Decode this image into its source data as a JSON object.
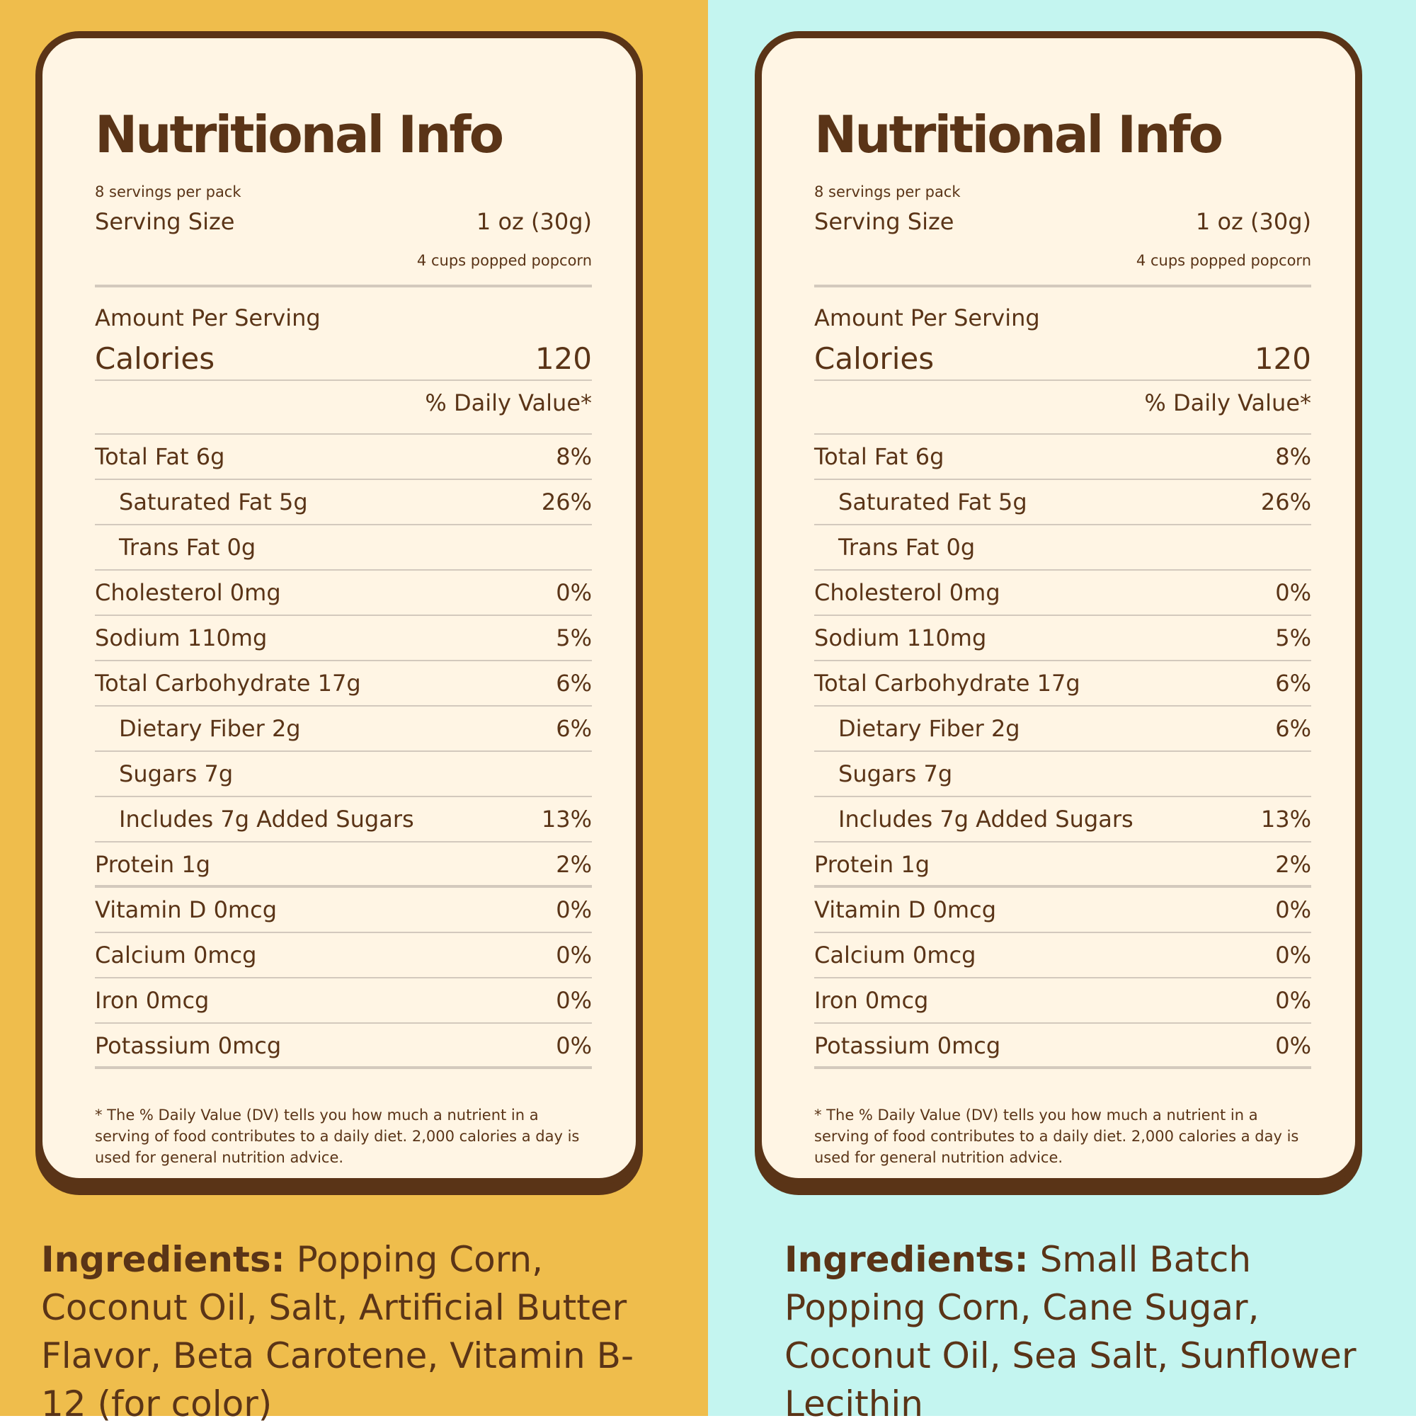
{
  "colors": {
    "left_bg": "#efbd4c",
    "right_bg": "#c4f5f0",
    "card_bg": "#fff5e4",
    "text": "#5a3417",
    "rule": "#d3c9bd"
  },
  "panels": [
    {
      "title": "Nutritional Info",
      "servings_per_pack": "8 servings per pack",
      "serving_size_label": "Serving Size",
      "serving_size_value": "1 oz (30g)",
      "serving_size_note": "4 cups popped popcorn",
      "amount_per_serving": "Amount Per Serving",
      "calories_label": "Calories",
      "calories_value": "120",
      "daily_value_header": "% Daily Value*",
      "nutrients": [
        {
          "label": "Total Fat 6g",
          "dv": "8%"
        },
        {
          "label": "Saturated Fat 5g",
          "dv": "26%"
        },
        {
          "label": "Trans Fat 0g",
          "dv": ""
        },
        {
          "label": "Cholesterol 0mg",
          "dv": "0%"
        },
        {
          "label": "Sodium 110mg",
          "dv": "5%"
        },
        {
          "label": "Total Carbohydrate 17g",
          "dv": "6%"
        },
        {
          "label": "Dietary Fiber 2g",
          "dv": "6%"
        },
        {
          "label": "Sugars 7g",
          "dv": ""
        },
        {
          "label": "Includes 7g Added Sugars",
          "dv": "13%"
        },
        {
          "label": "Protein 1g",
          "dv": "2%"
        },
        {
          "label": "Vitamin D 0mcg",
          "dv": "0%"
        },
        {
          "label": "Calcium 0mcg",
          "dv": "0%"
        },
        {
          "label": "Iron 0mcg",
          "dv": "0%"
        },
        {
          "label": "Potassium 0mcg",
          "dv": "0%"
        }
      ],
      "footnote": "* The % Daily Value (DV) tells you how much a nutrient in a serving of food contributes to a daily diet. 2,000 calories a day is used for general nutrition advice.",
      "ingredients_label": "Ingredients:",
      "ingredients_text": "Popping Corn, Coconut Oil, Salt, Artificial Butter Flavor, Beta Carotene, Vitamin B-12 (for color)"
    },
    {
      "title": "Nutritional Info",
      "servings_per_pack": "8 servings per pack",
      "serving_size_label": "Serving Size",
      "serving_size_value": "1 oz (30g)",
      "serving_size_note": "4 cups popped popcorn",
      "amount_per_serving": "Amount Per Serving",
      "calories_label": "Calories",
      "calories_value": "120",
      "daily_value_header": "% Daily Value*",
      "nutrients": [
        {
          "label": "Total Fat 6g",
          "dv": "8%"
        },
        {
          "label": "Saturated Fat 5g",
          "dv": "26%"
        },
        {
          "label": "Trans Fat 0g",
          "dv": ""
        },
        {
          "label": "Cholesterol 0mg",
          "dv": "0%"
        },
        {
          "label": "Sodium 110mg",
          "dv": "5%"
        },
        {
          "label": "Total Carbohydrate 17g",
          "dv": "6%"
        },
        {
          "label": "Dietary Fiber 2g",
          "dv": "6%"
        },
        {
          "label": "Sugars 7g",
          "dv": ""
        },
        {
          "label": "Includes 7g Added Sugars",
          "dv": "13%"
        },
        {
          "label": "Protein 1g",
          "dv": "2%"
        },
        {
          "label": "Vitamin D 0mcg",
          "dv": "0%"
        },
        {
          "label": "Calcium 0mcg",
          "dv": "0%"
        },
        {
          "label": "Iron 0mcg",
          "dv": "0%"
        },
        {
          "label": "Potassium 0mcg",
          "dv": "0%"
        }
      ],
      "footnote": "* The % Daily Value (DV) tells you how much a nutrient in a serving of food contributes to a daily diet. 2,000 calories a day is used for general nutrition advice.",
      "ingredients_label": "Ingredients:",
      "ingredients_text": "Small Batch Popping Corn, Cane Sugar, Coconut Oil, Sea Salt, Sunflower Lecithin"
    }
  ]
}
